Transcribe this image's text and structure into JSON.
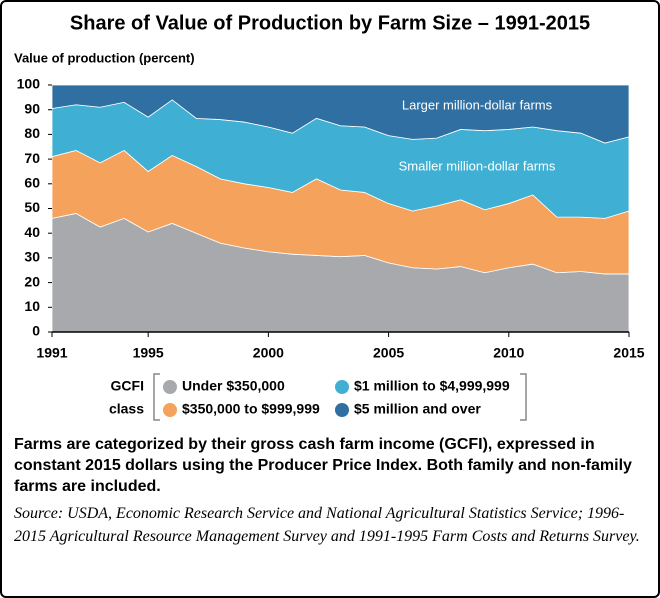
{
  "chart_data": {
    "type": "stacked_area",
    "title": "Share of Value of Production by Farm Size – 1991-2015",
    "y_label": "Value of production (percent)",
    "x": [
      1991,
      1992,
      1993,
      1994,
      1995,
      1996,
      1997,
      1998,
      1999,
      2000,
      2001,
      2002,
      2003,
      2004,
      2005,
      2006,
      2007,
      2008,
      2009,
      2010,
      2011,
      2012,
      2013,
      2014,
      2015
    ],
    "xlim": [
      1991,
      2015
    ],
    "xticks": [
      1991,
      1995,
      2000,
      2005,
      2010,
      2015
    ],
    "ylim": [
      0,
      100
    ],
    "yticks": [
      0,
      10,
      20,
      30,
      40,
      50,
      60,
      70,
      80,
      90,
      100
    ],
    "series": [
      {
        "name": "Under $350,000",
        "color": "#a7a9ac",
        "values": [
          46,
          48,
          42.5,
          46,
          40.5,
          44,
          40,
          36,
          34,
          32.5,
          31.5,
          31,
          30.5,
          31,
          28,
          26,
          25.5,
          26.5,
          24,
          26,
          27.5,
          24,
          24.5,
          23.5,
          23.5
        ]
      },
      {
        "name": "$350,000 to $999,999",
        "color": "#f5a35c",
        "values": [
          25,
          25.5,
          26,
          27.5,
          24.5,
          27.5,
          27,
          26,
          26,
          26,
          25,
          31,
          27,
          25.5,
          24,
          23,
          25.5,
          27,
          25.5,
          26,
          28,
          22.5,
          22,
          22.5,
          25.5
        ]
      },
      {
        "name": "$1 million to $4,999,999",
        "color": "#3fb0d3",
        "values": [
          19.5,
          18.5,
          22.5,
          19.5,
          22,
          22.5,
          19.5,
          24,
          25,
          24.5,
          24,
          24.5,
          26,
          26.5,
          27.5,
          29,
          27.5,
          28.5,
          32,
          30,
          27.5,
          35,
          34,
          30.5,
          30
        ]
      },
      {
        "name": "$5 million and over",
        "color": "#2f6fa1",
        "values": [
          9.5,
          8,
          9,
          7,
          13,
          6,
          13.5,
          14,
          15,
          17,
          19.5,
          13.5,
          16.5,
          17,
          20.5,
          22,
          21.5,
          18,
          18.5,
          18,
          17,
          18.5,
          19.5,
          23.5,
          21
        ]
      }
    ],
    "annotations": [
      "Larger million-dollar farms",
      "Smaller million-dollar farms"
    ],
    "legend_title": [
      "GCFI",
      "class"
    ],
    "note": "Farms are categorized by their gross cash farm income (GCFI), expressed in constant 2015 dollars using the Producer Price Index. Both family and non-family farms are included.",
    "source": "Source: USDA, Economic Research Service and National Agricultural Statistics Service; 1996-2015 Agricultural Resource Management Survey and 1991-1995 Farm Costs and Returns Survey."
  }
}
